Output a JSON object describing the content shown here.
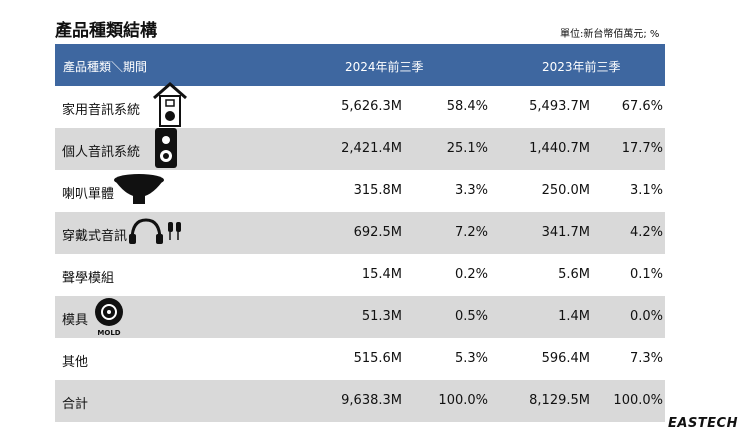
{
  "header": {
    "title": "產品種類結構",
    "unit": "單位:新台幣佰萬元; %"
  },
  "table": {
    "columns": [
      "產品種類＼期間",
      "2024年前三季",
      "2023年前三季"
    ],
    "rows": [
      [
        "家用音訊系統",
        "5,626.3M",
        "58.4%",
        "5,493.7M",
        "67.6%"
      ],
      [
        "個人音訊系統",
        "2,421.4M",
        "25.1%",
        "1,440.7M",
        "17.7%"
      ],
      [
        "喇叭單體",
        "315.8M",
        "3.3%",
        "250.0M",
        "3.1%"
      ],
      [
        "穿戴式音訊",
        "692.5M",
        "7.2%",
        "341.7M",
        "4.2%"
      ],
      [
        "聲學模組",
        "15.4M",
        "0.2%",
        "5.6M",
        "0.1%"
      ],
      [
        "模具",
        "51.3M",
        "0.5%",
        "1.4M",
        "0.0%"
      ],
      [
        "其他",
        "515.6M",
        "5.3%",
        "596.4M",
        "7.3%"
      ],
      [
        "合計",
        "9,638.3M",
        "100.0%",
        "8,129.5M",
        "100.0%"
      ]
    ]
  },
  "icons": {
    "mold": "MOLD"
  },
  "footer": {
    "logo": "EASTECH"
  }
}
